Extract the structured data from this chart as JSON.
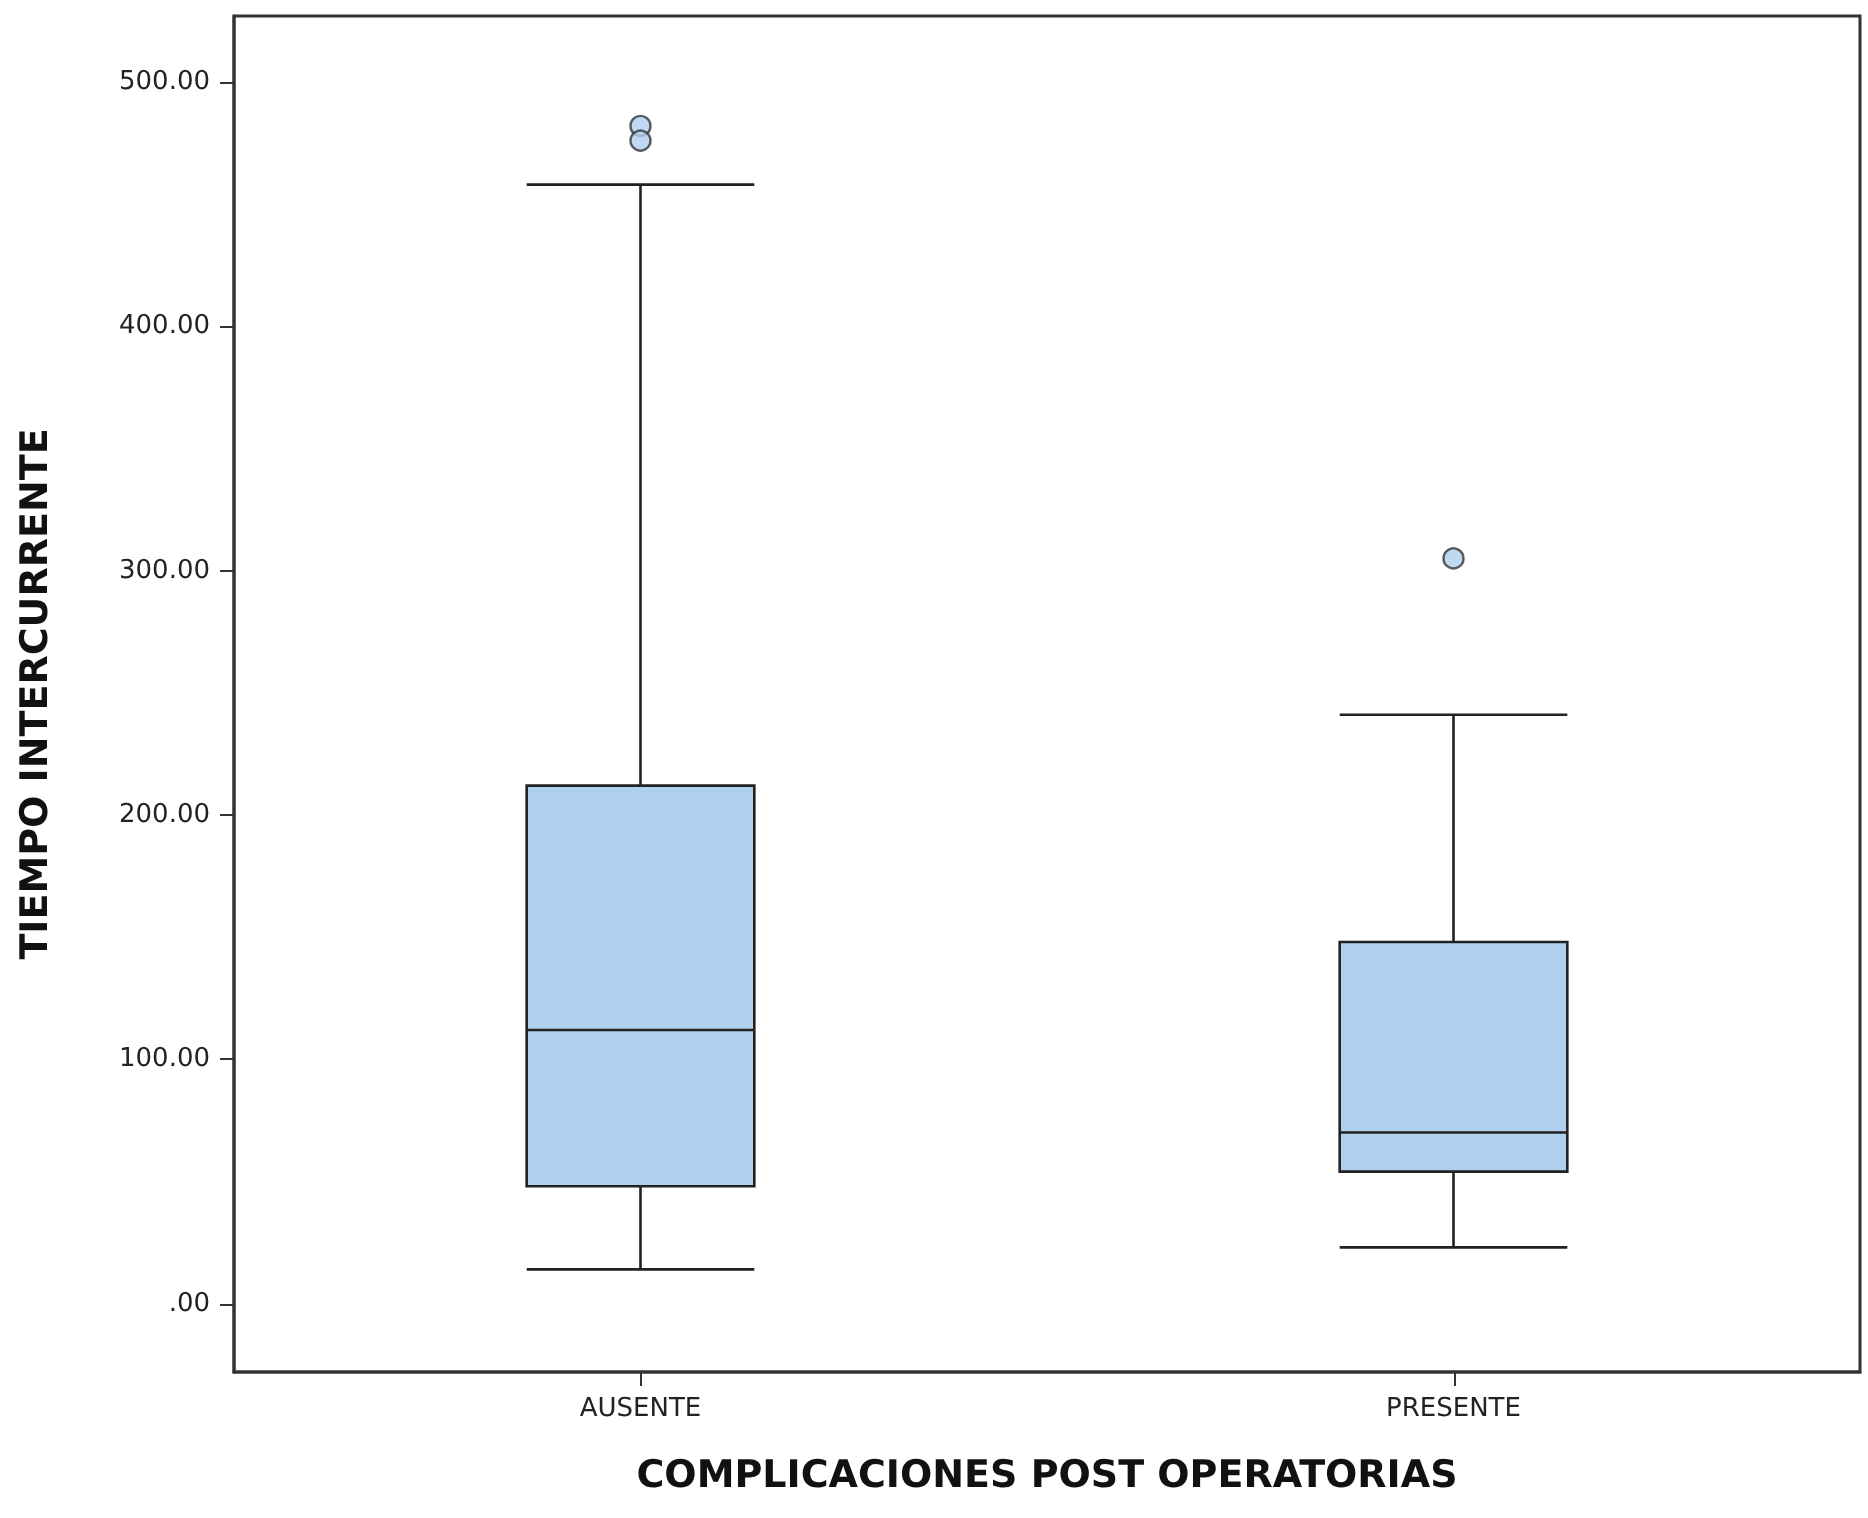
{
  "chart_data": {
    "type": "box",
    "xlabel": "COMPLICACIONES POST OPERATORIAS",
    "ylabel": "TIEMPO INTERCURRENTE",
    "categories": [
      "AUSENTE",
      "PRESENTE"
    ],
    "color": "#aed0ee",
    "boxes": [
      {
        "low": 14,
        "q1": 48,
        "median": 112,
        "q3": 212,
        "high": 458,
        "outliers": [
          482,
          476
        ]
      },
      {
        "low": 23,
        "q1": 54,
        "median": 70,
        "q3": 148,
        "high": 241,
        "outliers": [
          305
        ]
      }
    ],
    "ylim": [
      -28,
      527
    ],
    "yticks": [
      {
        "value": 0,
        "label": ".00"
      },
      {
        "value": 100,
        "label": "100.00"
      },
      {
        "value": 200,
        "label": "200.00"
      },
      {
        "value": 300,
        "label": "300.00"
      },
      {
        "value": 400,
        "label": "400.00"
      },
      {
        "value": 500,
        "label": "500.00"
      }
    ],
    "grid": false
  }
}
